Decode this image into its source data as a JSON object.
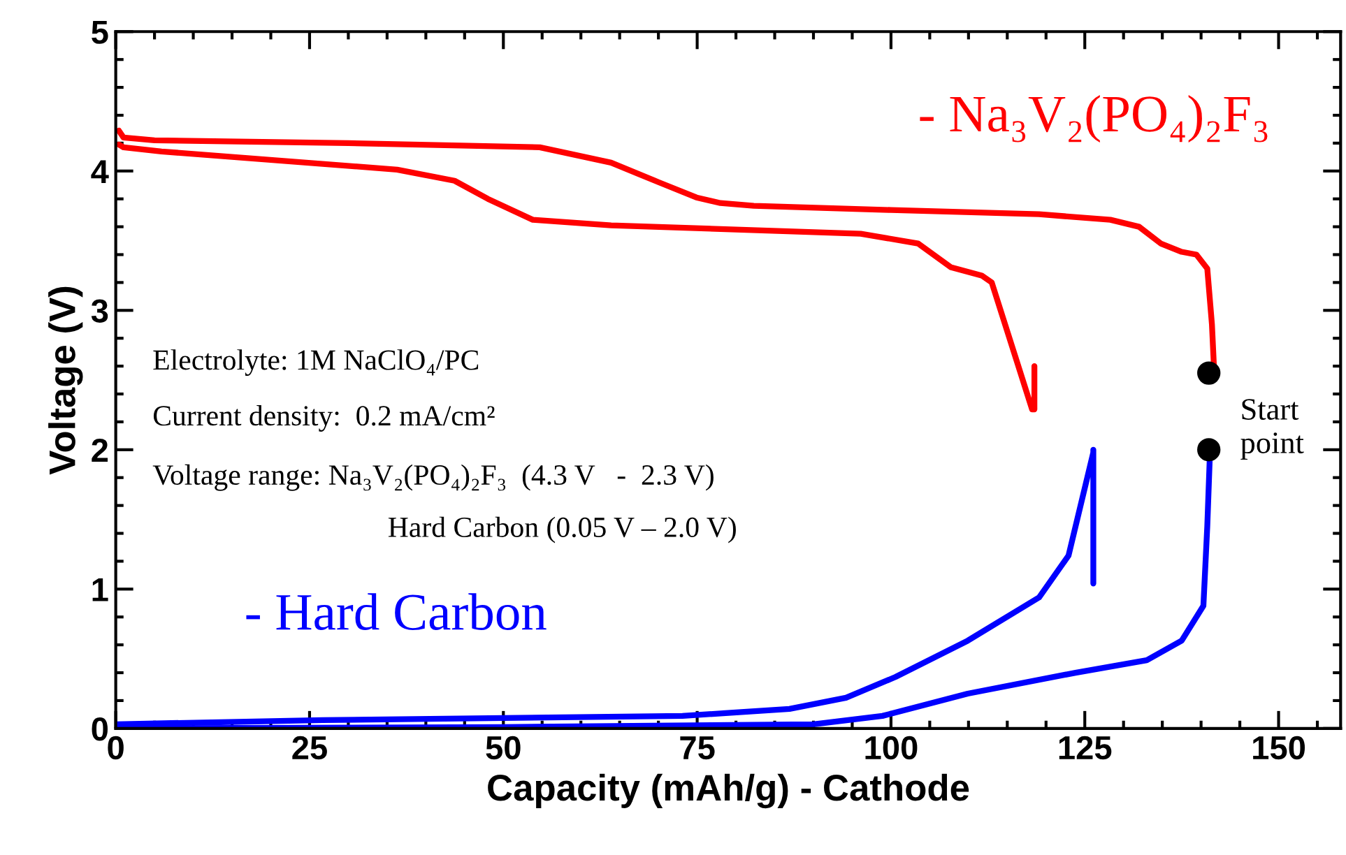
{
  "chart_data": {
    "type": "line",
    "xlabel": "Capacity (mAh/g) - Cathode",
    "ylabel": "Voltage (V)",
    "xlim": [
      0,
      158
    ],
    "ylim": [
      0,
      5
    ],
    "xticks": [
      0,
      25,
      50,
      75,
      100,
      125,
      150
    ],
    "yticks": [
      0,
      1,
      2,
      3,
      4,
      5
    ],
    "grid": false,
    "legend": false,
    "marker": "none",
    "line_style": "solid",
    "series": [
      {
        "name": "- Na₃V₂(PO₄)₂F₃",
        "color": "#ff0000",
        "x": [
          141.7,
          141.4,
          140.8,
          139.4,
          137.5,
          134.8,
          132,
          128.3,
          119.1,
          100,
          82.3,
          78,
          74.9,
          70,
          63.9,
          54.7,
          30,
          5,
          1,
          0.4
        ],
        "values": [
          2.55,
          2.9,
          3.3,
          3.4,
          3.42,
          3.48,
          3.6,
          3.65,
          3.69,
          3.72,
          3.75,
          3.77,
          3.81,
          3.92,
          4.06,
          4.17,
          4.2,
          4.22,
          4.24,
          4.29
        ]
      },
      {
        "color": "#ff0000",
        "x": [
          0.4,
          1,
          5.9,
          36.3,
          43.7,
          48,
          53.8,
          63.9,
          96.1,
          103.5,
          107.7,
          111.7,
          113,
          118.2,
          118.5,
          118.5
        ],
        "values": [
          4.19,
          4.17,
          4.14,
          4.01,
          3.93,
          3.8,
          3.65,
          3.61,
          3.55,
          3.48,
          3.31,
          3.25,
          3.2,
          2.29,
          2.29,
          2.6
        ]
      },
      {
        "name": "- Hard Carbon",
        "color": "#0000ff",
        "x": [
          141.1,
          141.1,
          140.8,
          140.3,
          137.5,
          133,
          123.8,
          109.9,
          98.9,
          90,
          50,
          0
        ],
        "values": [
          2.0,
          1.91,
          1.45,
          0.88,
          0.63,
          0.49,
          0.4,
          0.25,
          0.09,
          0.03,
          0.01,
          0.0
        ]
      },
      {
        "color": "#0000ff",
        "x": [
          0,
          26.7,
          73.1,
          86.9,
          94.2,
          100.6,
          109.9,
          119.1,
          122.9,
          126.1,
          126.1,
          126.1
        ],
        "values": [
          0.03,
          0.06,
          0.09,
          0.14,
          0.22,
          0.37,
          0.63,
          0.94,
          1.24,
          1.98,
          2.0,
          1.04
        ]
      },
      {
        "type": "scatter",
        "marker": "circle",
        "color": "#000000",
        "x": [
          141,
          141
        ],
        "values": [
          2.55,
          2.0
        ]
      }
    ],
    "annotations": [
      "Electrolyte: 1M NaClO₄/PC",
      "Current density:  0.2 mA/cm²",
      "Voltage range: Na₃V₂(PO₄)₂F₃  (4.3 V   -  2.3 V)",
      "Hard Carbon (0.05 V – 2.0 V)",
      "Start\npoint"
    ]
  }
}
